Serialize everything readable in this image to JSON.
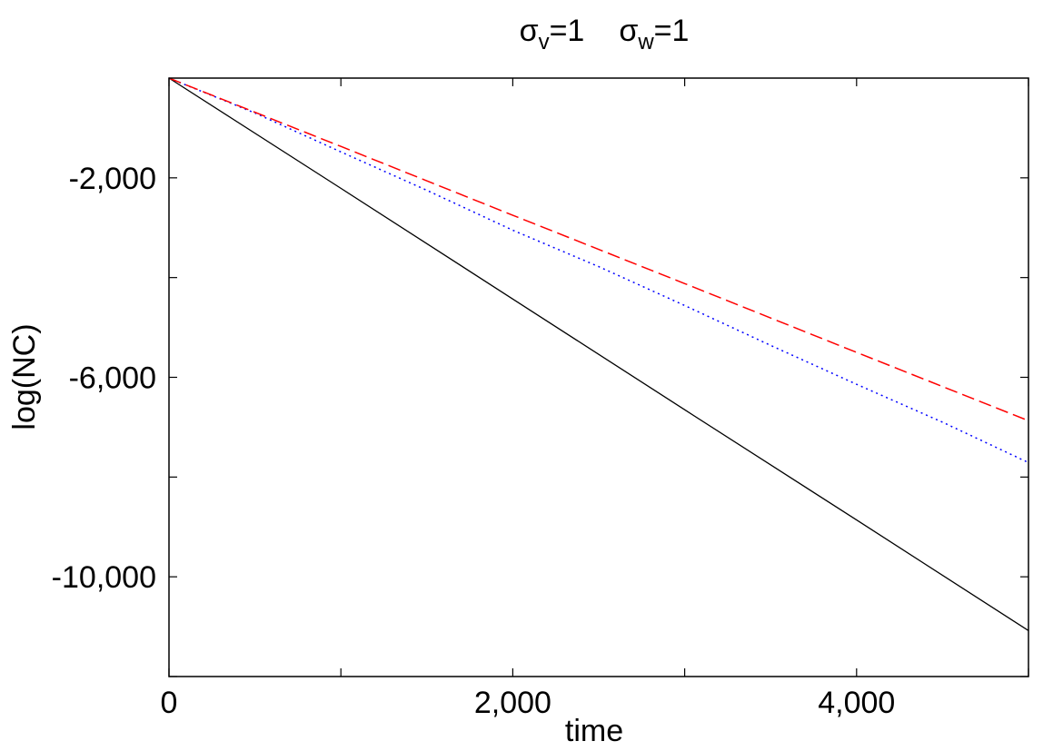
{
  "chart_data": {
    "type": "line",
    "title": {
      "sigma_v_symbol": "σ",
      "sigma_v_subscript": "v",
      "sigma_v_value": "=1",
      "sigma_w_symbol": "σ",
      "sigma_w_subscript": "w",
      "sigma_w_value": "=1"
    },
    "xlabel": "time",
    "ylabel": "log(NC)",
    "xlim": [
      0,
      5000
    ],
    "ylim": [
      -12000,
      0
    ],
    "x_tick_values": [
      0,
      1000,
      2000,
      3000,
      4000,
      5000
    ],
    "x_tick_labels": [
      "0",
      "",
      "2,000",
      "",
      "4,000",
      ""
    ],
    "y_tick_values": [
      -2000,
      -4000,
      -6000,
      -8000,
      -10000,
      -12000
    ],
    "y_tick_labels": [
      "-2,000",
      "",
      "-6,000",
      "",
      "-10,000",
      ""
    ],
    "grid": false,
    "series": [
      {
        "color": "#000000",
        "style": "solid",
        "x": [
          0,
          1000,
          2000,
          3000,
          4000,
          5000
        ],
        "y": [
          0,
          -2210,
          -4430,
          -6650,
          -8860,
          -11080
        ]
      },
      {
        "color": "#0000ff",
        "style": "dotted",
        "x": [
          0,
          500,
          1000,
          1500,
          2000,
          2500,
          3000,
          3500,
          4000,
          4500,
          5000
        ],
        "y": [
          0,
          -700,
          -1480,
          -2250,
          -3050,
          -3780,
          -4560,
          -5360,
          -6140,
          -6900,
          -7710
        ]
      },
      {
        "color": "#ff0000",
        "style": "dashed",
        "x": [
          0,
          1000,
          2000,
          3000,
          4000,
          5000
        ],
        "y": [
          0,
          -1370,
          -2750,
          -4120,
          -5500,
          -6870
        ]
      }
    ]
  }
}
